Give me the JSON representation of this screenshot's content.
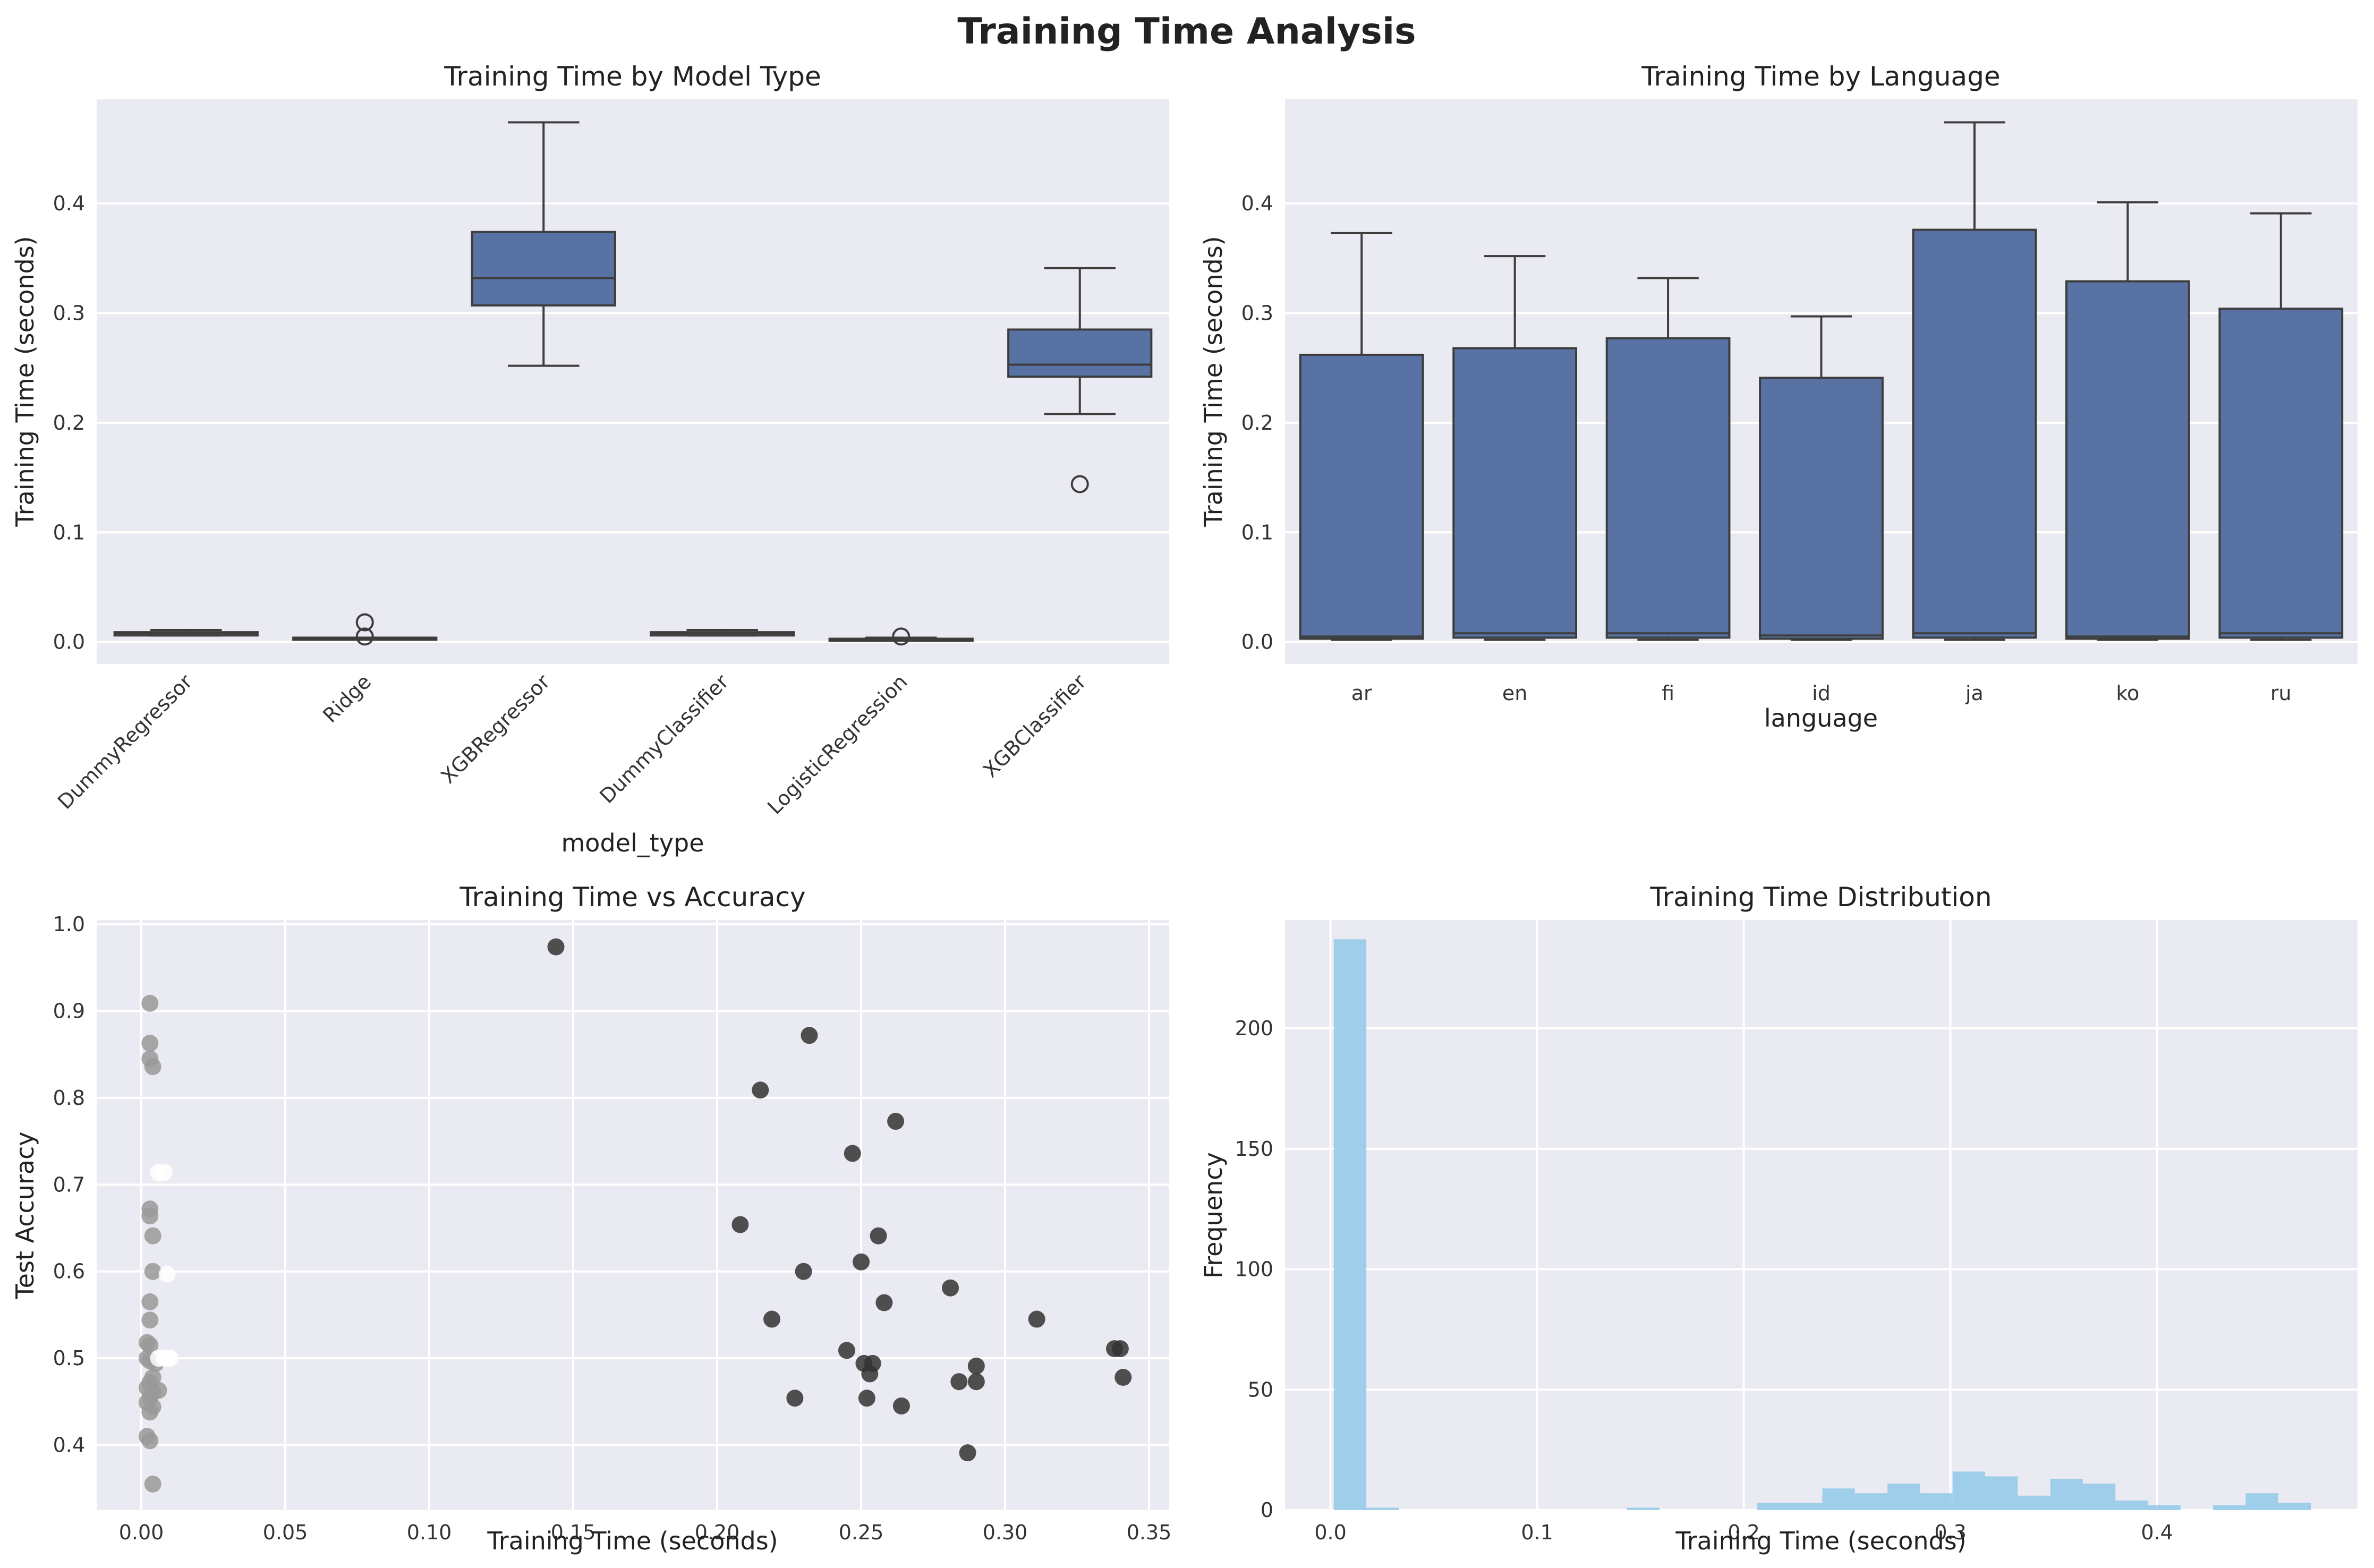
{
  "figure": {
    "title": "Training Time Analysis"
  },
  "colors": {
    "background": "#eaeaf2",
    "box": "#5873a3",
    "edge": "#3d3d3d",
    "hist": "#97cbe9"
  },
  "chart_data": [
    {
      "type": "box",
      "title": "Training Time by Model Type",
      "xlabel": "model_type",
      "ylabel": "Training Time (seconds)",
      "ylim": [
        -0.02,
        0.495
      ],
      "yticks": [
        "0.0",
        "0.1",
        "0.2",
        "0.3",
        "0.4"
      ],
      "categories": [
        "DummyRegressor",
        "Ridge",
        "XGBRegressor",
        "DummyClassifier",
        "LogisticRegression",
        "XGBClassifier"
      ],
      "boxes": [
        {
          "whislo": 0.006,
          "q1": 0.006,
          "med": 0.008,
          "q3": 0.009,
          "whishi": 0.011,
          "fliers": []
        },
        {
          "whislo": 0.003,
          "q1": 0.003,
          "med": 0.003,
          "q3": 0.004,
          "whishi": 0.004,
          "fliers": [
            0.018,
            0.005
          ]
        },
        {
          "whislo": 0.252,
          "q1": 0.307,
          "med": 0.332,
          "q3": 0.374,
          "whishi": 0.474,
          "fliers": []
        },
        {
          "whislo": 0.006,
          "q1": 0.006,
          "med": 0.008,
          "q3": 0.009,
          "whishi": 0.011,
          "fliers": []
        },
        {
          "whislo": 0.002,
          "q1": 0.002,
          "med": 0.003,
          "q3": 0.003,
          "whishi": 0.004,
          "fliers": [
            0.005
          ]
        },
        {
          "whislo": 0.208,
          "q1": 0.242,
          "med": 0.253,
          "q3": 0.285,
          "whishi": 0.341,
          "fliers": [
            0.144
          ]
        }
      ]
    },
    {
      "type": "box",
      "title": "Training Time by Language",
      "xlabel": "language",
      "ylabel": "Training Time (seconds)",
      "ylim": [
        -0.02,
        0.495
      ],
      "yticks": [
        "0.0",
        "0.1",
        "0.2",
        "0.3",
        "0.4"
      ],
      "categories": [
        "ar",
        "en",
        "fi",
        "id",
        "ja",
        "ko",
        "ru"
      ],
      "boxes": [
        {
          "whislo": 0.002,
          "q1": 0.003,
          "med": 0.005,
          "q3": 0.262,
          "whishi": 0.373
        },
        {
          "whislo": 0.002,
          "q1": 0.004,
          "med": 0.008,
          "q3": 0.268,
          "whishi": 0.352
        },
        {
          "whislo": 0.002,
          "q1": 0.004,
          "med": 0.008,
          "q3": 0.277,
          "whishi": 0.332
        },
        {
          "whislo": 0.002,
          "q1": 0.003,
          "med": 0.006,
          "q3": 0.241,
          "whishi": 0.297
        },
        {
          "whislo": 0.002,
          "q1": 0.004,
          "med": 0.008,
          "q3": 0.376,
          "whishi": 0.474
        },
        {
          "whislo": 0.002,
          "q1": 0.003,
          "med": 0.005,
          "q3": 0.329,
          "whishi": 0.401
        },
        {
          "whislo": 0.002,
          "q1": 0.004,
          "med": 0.008,
          "q3": 0.304,
          "whishi": 0.391
        }
      ]
    },
    {
      "type": "scatter",
      "title": "Training Time vs Accuracy",
      "xlabel": "Training Time (seconds)",
      "ylabel": "Test Accuracy",
      "xlim": [
        -0.0155,
        0.357
      ],
      "ylim": [
        0.325,
        1.005
      ],
      "xticks": [
        "0.00",
        "0.05",
        "0.10",
        "0.15",
        "0.20",
        "0.25",
        "0.30",
        "0.35"
      ],
      "yticks": [
        "0.4",
        "0.5",
        "0.6",
        "0.7",
        "0.8",
        "0.9",
        "1.0"
      ],
      "series": [
        {
          "color": "#999999",
          "points": [
            [
              0.003,
              0.909
            ],
            [
              0.003,
              0.863
            ],
            [
              0.003,
              0.845
            ],
            [
              0.004,
              0.836
            ],
            [
              0.003,
              0.672
            ],
            [
              0.003,
              0.664
            ],
            [
              0.004,
              0.641
            ],
            [
              0.004,
              0.6
            ],
            [
              0.003,
              0.565
            ],
            [
              0.003,
              0.544
            ],
            [
              0.002,
              0.518
            ],
            [
              0.003,
              0.515
            ],
            [
              0.002,
              0.5
            ],
            [
              0.003,
              0.497
            ],
            [
              0.005,
              0.494
            ],
            [
              0.004,
              0.478
            ],
            [
              0.003,
              0.472
            ],
            [
              0.002,
              0.466
            ],
            [
              0.004,
              0.461
            ],
            [
              0.006,
              0.463
            ],
            [
              0.003,
              0.455
            ],
            [
              0.002,
              0.449
            ],
            [
              0.004,
              0.444
            ],
            [
              0.003,
              0.438
            ],
            [
              0.002,
              0.41
            ],
            [
              0.003,
              0.405
            ],
            [
              0.004,
              0.355
            ]
          ]
        },
        {
          "color": "#ffffff",
          "points": [
            [
              0.006,
              0.714
            ],
            [
              0.008,
              0.714
            ],
            [
              0.009,
              0.597
            ],
            [
              0.006,
              0.5
            ],
            [
              0.008,
              0.5
            ],
            [
              0.009,
              0.5
            ],
            [
              0.01,
              0.5
            ]
          ]
        },
        {
          "color": "#333333",
          "points": [
            [
              0.144,
              0.974
            ],
            [
              0.232,
              0.872
            ],
            [
              0.215,
              0.809
            ],
            [
              0.262,
              0.773
            ],
            [
              0.247,
              0.736
            ],
            [
              0.208,
              0.654
            ],
            [
              0.256,
              0.641
            ],
            [
              0.25,
              0.611
            ],
            [
              0.23,
              0.6
            ],
            [
              0.281,
              0.581
            ],
            [
              0.258,
              0.564
            ],
            [
              0.219,
              0.545
            ],
            [
              0.311,
              0.545
            ],
            [
              0.338,
              0.511
            ],
            [
              0.34,
              0.511
            ],
            [
              0.245,
              0.509
            ],
            [
              0.251,
              0.494
            ],
            [
              0.254,
              0.494
            ],
            [
              0.29,
              0.491
            ],
            [
              0.253,
              0.482
            ],
            [
              0.284,
              0.473
            ],
            [
              0.29,
              0.473
            ],
            [
              0.341,
              0.478
            ],
            [
              0.227,
              0.454
            ],
            [
              0.252,
              0.454
            ],
            [
              0.264,
              0.445
            ],
            [
              0.287,
              0.391
            ]
          ]
        }
      ]
    },
    {
      "type": "histogram",
      "title": "Training Time Distribution",
      "xlabel": "Training Time (seconds)",
      "ylabel": "Frequency",
      "xlim": [
        -0.022,
        0.497
      ],
      "ylim": [
        0,
        245
      ],
      "xticks": [
        "0.0",
        "0.1",
        "0.2",
        "0.3",
        "0.4"
      ],
      "yticks": [
        "0",
        "50",
        "100",
        "150",
        "200"
      ],
      "bin_start": 0.0016,
      "bin_width": 0.01576,
      "counts": [
        237,
        1,
        0,
        0,
        0,
        0,
        0,
        0,
        0,
        1,
        0,
        0,
        0,
        3,
        3,
        9,
        7,
        11,
        7,
        16,
        14,
        6,
        13,
        11,
        4,
        2,
        0,
        2,
        7,
        3
      ]
    }
  ]
}
